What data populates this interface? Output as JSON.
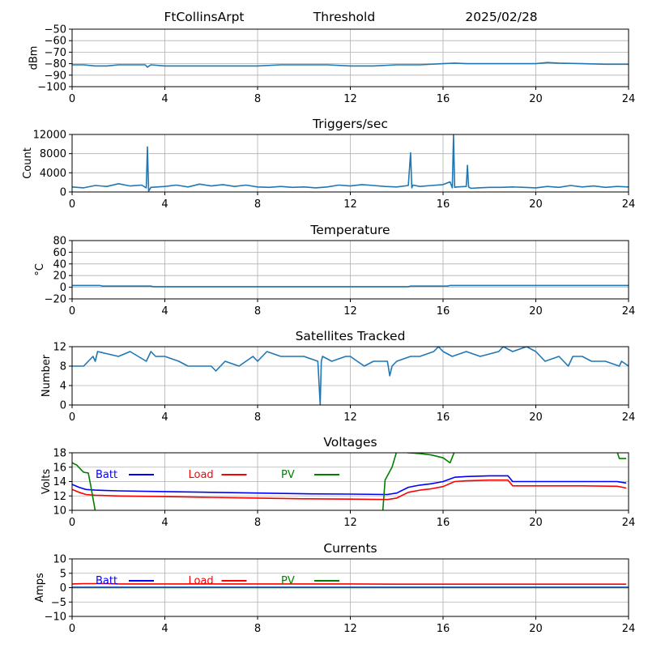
{
  "header": {
    "station": "FtCollinsArpt",
    "mode": "Threshold",
    "date": "2025/02/28"
  },
  "colors": {
    "default_series": "#1f77b4",
    "batt": "#0000ff",
    "load": "#ff0000",
    "pv": "#008000",
    "grid": "#b0b0b0"
  },
  "chart_data": [
    {
      "type": "line",
      "title": "",
      "xlabel": "",
      "ylabel": "dBm",
      "xlim": [
        0,
        24
      ],
      "ylim": [
        -100,
        -50
      ],
      "xticks": [
        "0",
        "4",
        "8",
        "12",
        "16",
        "20",
        "24"
      ],
      "yticks": [
        "−100",
        "−90",
        "−80",
        "−70",
        "−60",
        "−50"
      ],
      "grid": true,
      "series": [
        {
          "color": "#1f77b4",
          "x": [
            0,
            0.5,
            1,
            1.5,
            2,
            2.5,
            3,
            3.15,
            3.25,
            3.4,
            4,
            5,
            6,
            7,
            8,
            9,
            10,
            11,
            12,
            13,
            14,
            15,
            16,
            16.5,
            17,
            18,
            19,
            20,
            20.5,
            21,
            22,
            23,
            24
          ],
          "y": [
            -81,
            -81,
            -82,
            -82,
            -81,
            -81,
            -81,
            -81,
            -83,
            -81,
            -82,
            -82,
            -82,
            -82,
            -82,
            -81,
            -81,
            -81,
            -82,
            -82,
            -81,
            -81,
            -80,
            -79.5,
            -80,
            -80,
            -80,
            -80,
            -79,
            -79.5,
            -80,
            -80.5,
            -80.5
          ]
        }
      ]
    },
    {
      "type": "line",
      "title": "Triggers/sec",
      "xlabel": "",
      "ylabel": "Count",
      "xlim": [
        0,
        24
      ],
      "ylim": [
        0,
        12500
      ],
      "xticks": [
        "0",
        "4",
        "8",
        "12",
        "16",
        "20",
        "24"
      ],
      "yticks": [
        "0",
        "4000",
        "8000",
        "12000"
      ],
      "grid": true,
      "series": [
        {
          "color": "#1f77b4",
          "x": [
            0,
            0.5,
            1,
            1.5,
            2,
            2.5,
            3,
            3.2,
            3.25,
            3.3,
            3.4,
            4,
            4.5,
            5,
            5.5,
            6,
            6.5,
            7,
            7.5,
            8,
            8.5,
            9,
            9.5,
            10,
            10.5,
            11,
            11.5,
            12,
            12.5,
            13,
            13.5,
            14,
            14.5,
            14.6,
            14.65,
            14.7,
            15,
            15.5,
            16,
            16.3,
            16.4,
            16.45,
            16.5,
            16.6,
            17,
            17.05,
            17.1,
            17.2,
            17.5,
            18,
            18.5,
            19,
            19.5,
            20,
            20.5,
            21,
            21.5,
            22,
            22.5,
            23,
            23.5,
            24
          ],
          "y": [
            1100,
            900,
            1400,
            1200,
            1800,
            1300,
            1500,
            900,
            9800,
            200,
            1000,
            1200,
            1500,
            1100,
            1700,
            1300,
            1600,
            1200,
            1500,
            1100,
            1000,
            1200,
            1000,
            1100,
            900,
            1100,
            1500,
            1300,
            1600,
            1400,
            1200,
            1100,
            1400,
            8500,
            900,
            1500,
            1200,
            1400,
            1600,
            2200,
            900,
            12500,
            1000,
            1100,
            1200,
            5800,
            1100,
            800,
            900,
            1000,
            1000,
            1100,
            1000,
            900,
            1200,
            1000,
            1400,
            1100,
            1300,
            1000,
            1200,
            1100
          ]
        }
      ]
    },
    {
      "type": "line",
      "title": "Temperature",
      "xlabel": "",
      "ylabel": "°C",
      "xlim": [
        0,
        24
      ],
      "ylim": [
        -20,
        80
      ],
      "xticks": [
        "0",
        "4",
        "8",
        "12",
        "16",
        "20",
        "24"
      ],
      "yticks": [
        "−20",
        "0",
        "20",
        "40",
        "60",
        "80"
      ],
      "grid": true,
      "series": [
        {
          "color": "#1f77b4",
          "x": [
            0,
            1.2,
            1.3,
            3.4,
            3.5,
            14.5,
            14.6,
            16.2,
            16.3,
            24
          ],
          "y": [
            3,
            3,
            2,
            2,
            1,
            1,
            2,
            2,
            3,
            3
          ]
        }
      ]
    },
    {
      "type": "line",
      "title": "Satellites Tracked",
      "xlabel": "",
      "ylabel": "Number",
      "xlim": [
        0,
        24
      ],
      "ylim": [
        0,
        12
      ],
      "xticks": [
        "0",
        "4",
        "8",
        "12",
        "16",
        "20",
        "24"
      ],
      "yticks": [
        "0",
        "4",
        "8",
        "12"
      ],
      "grid": true,
      "series": [
        {
          "color": "#1f77b4",
          "x": [
            0,
            0.5,
            0.7,
            0.9,
            1.0,
            1.1,
            2.0,
            2.5,
            3.2,
            3.4,
            3.6,
            4.0,
            4.6,
            5.0,
            5.3,
            6.0,
            6.2,
            6.4,
            6.6,
            7.2,
            7.5,
            7.8,
            8.0,
            8.4,
            9.0,
            9.6,
            10.0,
            10.6,
            10.7,
            10.75,
            10.8,
            11.2,
            11.8,
            12.0,
            12.6,
            13.0,
            13.6,
            13.7,
            13.8,
            14.0,
            14.6,
            15.0,
            15.6,
            15.8,
            16.0,
            16.4,
            17.0,
            17.6,
            18.4,
            18.6,
            19.0,
            19.6,
            20.0,
            20.4,
            21.0,
            21.4,
            21.6,
            22.0,
            22.4,
            23.0,
            23.6,
            23.7,
            24
          ],
          "y": [
            8,
            8,
            9,
            10,
            9,
            11,
            10,
            11,
            9,
            11,
            10,
            10,
            9,
            8,
            8,
            8,
            7,
            8,
            9,
            8,
            9,
            10,
            9,
            11,
            10,
            10,
            10,
            9,
            0,
            9,
            10,
            9,
            10,
            10,
            8,
            9,
            9,
            6,
            8,
            9,
            10,
            10,
            11,
            12,
            11,
            10,
            11,
            10,
            11,
            12,
            11,
            12,
            11,
            9,
            10,
            8,
            10,
            10,
            9,
            9,
            8,
            9,
            8
          ]
        }
      ]
    },
    {
      "type": "line",
      "title": "Voltages",
      "xlabel": "",
      "ylabel": "Volts",
      "xlim": [
        0,
        24
      ],
      "ylim": [
        10,
        18
      ],
      "xticks": [
        "0",
        "4",
        "8",
        "12",
        "16",
        "20",
        "24"
      ],
      "yticks": [
        "10",
        "12",
        "14",
        "16",
        "18"
      ],
      "grid": true,
      "legend": "top-left",
      "series": [
        {
          "name": "Batt",
          "color": "#0000ff",
          "x": [
            0,
            0.3,
            0.6,
            1.0,
            2,
            4,
            6,
            8,
            10,
            12,
            13.6,
            14.0,
            14.5,
            15.0,
            15.5,
            16.0,
            16.5,
            17.0,
            18.0,
            18.8,
            19.0,
            20,
            22,
            23.5,
            23.9
          ],
          "y": [
            13.6,
            13.2,
            12.9,
            12.8,
            12.7,
            12.6,
            12.5,
            12.4,
            12.3,
            12.25,
            12.2,
            12.4,
            13.2,
            13.5,
            13.7,
            14.0,
            14.6,
            14.7,
            14.8,
            14.8,
            14.0,
            14.0,
            14.0,
            14.0,
            13.8
          ]
        },
        {
          "name": "Load",
          "color": "#ff0000",
          "x": [
            0,
            0.3,
            0.6,
            1.0,
            2,
            4,
            6,
            8,
            10,
            12,
            13.6,
            14.0,
            14.5,
            15.0,
            15.5,
            16.0,
            16.5,
            17.0,
            18.0,
            18.8,
            19.0,
            20,
            22,
            23.5,
            23.9
          ],
          "y": [
            12.9,
            12.5,
            12.2,
            12.1,
            12.0,
            11.9,
            11.8,
            11.7,
            11.6,
            11.55,
            11.5,
            11.7,
            12.5,
            12.8,
            13.0,
            13.3,
            14.0,
            14.1,
            14.2,
            14.2,
            13.4,
            13.4,
            13.4,
            13.35,
            13.1
          ]
        },
        {
          "name": "PV",
          "color": "#008000",
          "x": [
            0,
            0.2,
            0.4,
            0.5,
            0.7,
            0.8,
            1.0,
            13.4,
            13.5,
            13.8,
            14.0,
            14.5,
            15.0,
            15.5,
            16.0,
            16.3,
            16.5,
            23.5,
            23.6,
            23.9
          ],
          "y": [
            16.6,
            16.3,
            15.6,
            15.3,
            15.2,
            13.5,
            9.9,
            9.9,
            14.2,
            16.0,
            18.2,
            18.0,
            17.9,
            17.7,
            17.3,
            16.6,
            18.2,
            18.2,
            17.2,
            17.2
          ]
        }
      ]
    },
    {
      "type": "line",
      "title": "Currents",
      "xlabel": "",
      "ylabel": "Amps",
      "xlim": [
        0,
        24
      ],
      "ylim": [
        -10,
        10
      ],
      "xticks": [
        "0",
        "4",
        "8",
        "12",
        "16",
        "20",
        "24"
      ],
      "yticks": [
        "−10",
        "−5",
        "0",
        "5",
        "10"
      ],
      "grid": true,
      "legend": "top-left",
      "series": [
        {
          "name": "Batt",
          "color": "#0000ff",
          "x": [
            0,
            24
          ],
          "y": [
            0.1,
            0.1
          ]
        },
        {
          "name": "Load",
          "color": "#ff0000",
          "x": [
            0,
            0.5,
            1.5,
            2,
            4,
            8,
            12,
            14,
            16,
            20,
            23.9
          ],
          "y": [
            1.3,
            1.4,
            1.4,
            1.3,
            1.3,
            1.3,
            1.3,
            1.2,
            1.2,
            1.2,
            1.2
          ]
        },
        {
          "name": "PV",
          "color": "#008000",
          "x": [
            0,
            24
          ],
          "y": [
            0,
            0
          ]
        }
      ]
    }
  ]
}
